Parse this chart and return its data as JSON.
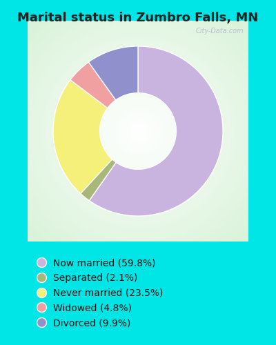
{
  "title": "Marital status in Zumbro Falls, MN",
  "slices": [
    59.8,
    2.1,
    23.5,
    4.8,
    9.9
  ],
  "labels": [
    "Now married (59.8%)",
    "Separated (2.1%)",
    "Never married (23.5%)",
    "Widowed (4.8%)",
    "Divorced (9.9%)"
  ],
  "colors": [
    "#c9b4e0",
    "#a8b87a",
    "#f5f07a",
    "#f0a0a0",
    "#9090cc"
  ],
  "bg_cyan": "#00e5e5",
  "bg_chart": "#d8f0d8",
  "title_fontsize": 13,
  "legend_fontsize": 10,
  "watermark": "City-Data.com",
  "donut_width": 0.55,
  "startangle": 90
}
